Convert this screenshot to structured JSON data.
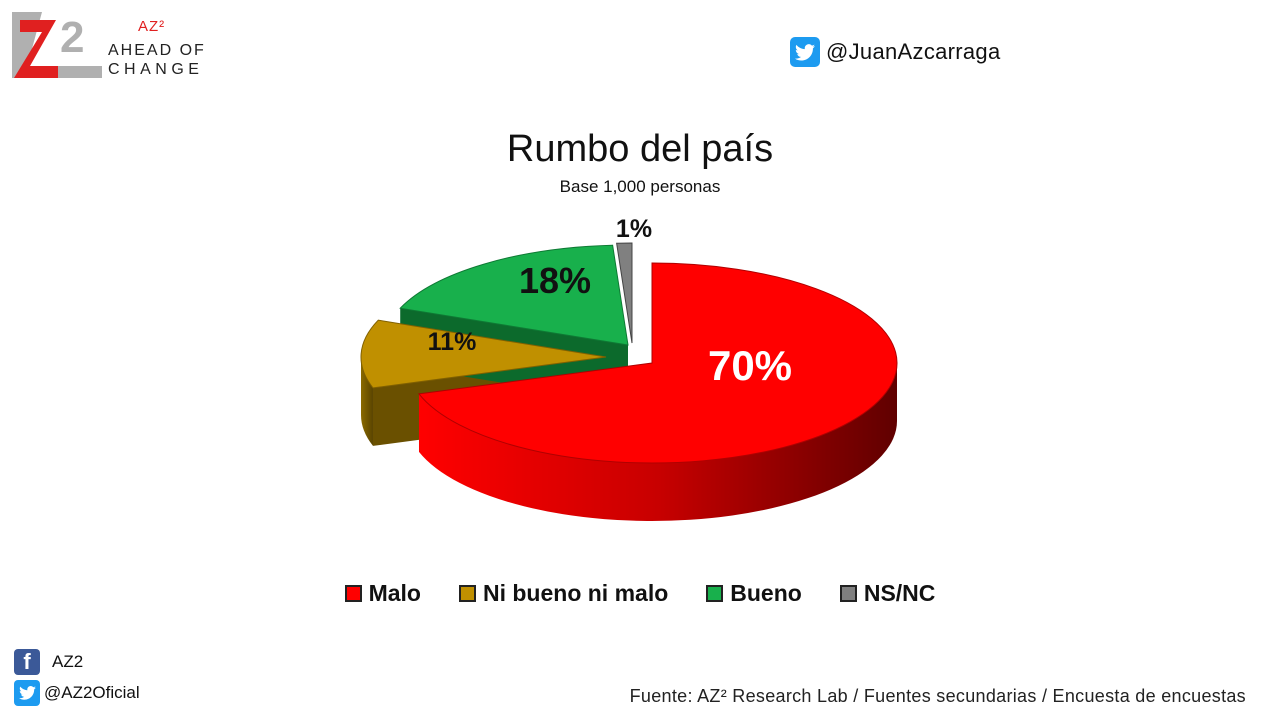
{
  "logo": {
    "mark": "AZ2",
    "small_label": "AZ²",
    "line1": "AHEAD OF",
    "line2": "CHANGE"
  },
  "header": {
    "twitter_handle": "@JuanAzcarraga",
    "icon": "twitter-icon"
  },
  "chart_data": {
    "type": "pie",
    "title": "Rumbo del país",
    "subtitle": "Base 1,000 personas",
    "categories": [
      "Malo",
      "Ni bueno ni malo",
      "Bueno",
      "NS/NC"
    ],
    "values": [
      70,
      11,
      18,
      1
    ],
    "labels": [
      "70%",
      "11%",
      "18%",
      "1%"
    ],
    "colors": [
      "#ff0000",
      "#c09000",
      "#18b04c",
      "#808080"
    ],
    "legend_position": "bottom",
    "style": "3d-exploded"
  },
  "footer": {
    "facebook_label": "AZ2",
    "twitter_label": "@AZ2Oficial",
    "source": "Fuente: AZ² Research Lab / Fuentes secundarias / Encuesta de encuestas"
  }
}
